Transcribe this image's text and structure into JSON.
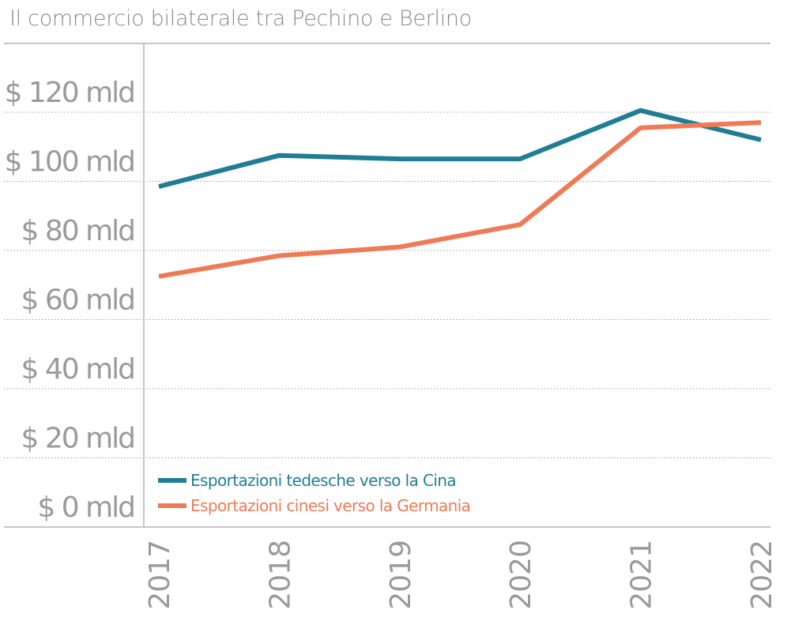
{
  "chart_data": {
    "type": "line",
    "title": "Il commercio bilaterale tra Pechino e Berlino",
    "x": [
      "2017",
      "2018",
      "2019",
      "2020",
      "2021",
      "2022"
    ],
    "y_ticks": [
      "$ 0 mld",
      "$ 20 mld",
      "$ 40 mld",
      "$ 60 mld",
      "$ 80 mld",
      "$ 100 mld",
      "$ 120 mld"
    ],
    "ylim": [
      0,
      140
    ],
    "grid": true,
    "legend_position": "bottom-left",
    "series": [
      {
        "name": "Esportazioni tedesche verso la Cina",
        "color": "#1f7e96",
        "values": [
          98.5,
          107.5,
          106.5,
          106.5,
          120.5,
          112
        ]
      },
      {
        "name": "Esportazioni cinesi verso la Germania",
        "color": "#ef7b56",
        "values": [
          72.5,
          78.5,
          81,
          87.5,
          115.5,
          117
        ]
      }
    ]
  }
}
